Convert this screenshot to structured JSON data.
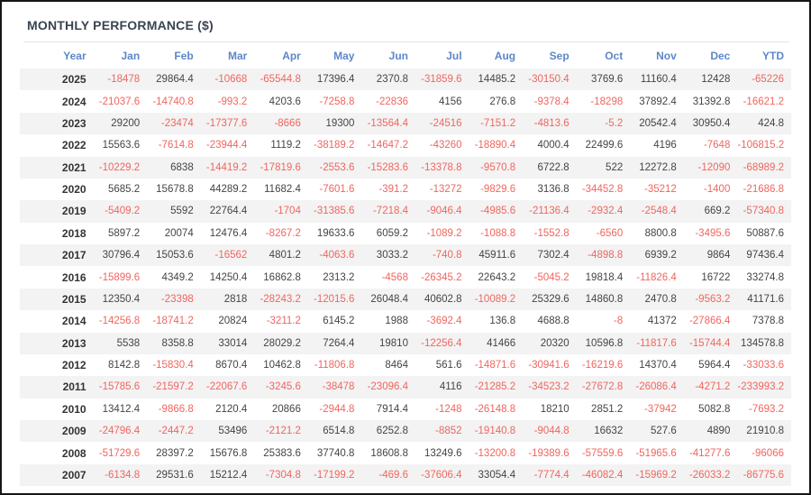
{
  "title": "MONTHLY PERFORMANCE ($)",
  "colors": {
    "title": "#3a4450",
    "divider": "#e4e4e4",
    "header_text": "#5d87c8",
    "negative": "#f1655e",
    "positive": "#444444",
    "year": "#333333",
    "stripe": "#f3f3f3",
    "frame_border": "#161616"
  },
  "table": {
    "columns": [
      "Year",
      "Jan",
      "Feb",
      "Mar",
      "Apr",
      "May",
      "Jun",
      "Jul",
      "Aug",
      "Sep",
      "Oct",
      "Nov",
      "Dec",
      "YTD"
    ],
    "rows": [
      {
        "year": "2025",
        "values": [
          "-18478",
          "29864.4",
          "-10668",
          "-65544.8",
          "17396.4",
          "2370.8",
          "-31859.6",
          "14485.2",
          "-30150.4",
          "3769.6",
          "11160.4",
          "12428",
          "-65226"
        ]
      },
      {
        "year": "2024",
        "values": [
          "-21037.6",
          "-14740.8",
          "-993.2",
          "4203.6",
          "-7258.8",
          "-22836",
          "4156",
          "276.8",
          "-9378.4",
          "-18298",
          "37892.4",
          "31392.8",
          "-16621.2"
        ]
      },
      {
        "year": "2023",
        "values": [
          "29200",
          "-23474",
          "-17377.6",
          "-8666",
          "19300",
          "-13564.4",
          "-24516",
          "-7151.2",
          "-4813.6",
          "-5.2",
          "20542.4",
          "30950.4",
          "424.8"
        ]
      },
      {
        "year": "2022",
        "values": [
          "15563.6",
          "-7614.8",
          "-23944.4",
          "1119.2",
          "-38189.2",
          "-14647.2",
          "-43260",
          "-18890.4",
          "4000.4",
          "22499.6",
          "4196",
          "-7648",
          "-106815.2"
        ]
      },
      {
        "year": "2021",
        "values": [
          "-10229.2",
          "6838",
          "-14419.2",
          "-17819.6",
          "-2553.6",
          "-15283.6",
          "-13378.8",
          "-9570.8",
          "6722.8",
          "522",
          "12272.8",
          "-12090",
          "-68989.2"
        ]
      },
      {
        "year": "2020",
        "values": [
          "5685.2",
          "15678.8",
          "44289.2",
          "11682.4",
          "-7601.6",
          "-391.2",
          "-13272",
          "-9829.6",
          "3136.8",
          "-34452.8",
          "-35212",
          "-1400",
          "-21686.8"
        ]
      },
      {
        "year": "2019",
        "values": [
          "-5409.2",
          "5592",
          "22764.4",
          "-1704",
          "-31385.6",
          "-7218.4",
          "-9046.4",
          "-4985.6",
          "-21136.4",
          "-2932.4",
          "-2548.4",
          "669.2",
          "-57340.8"
        ]
      },
      {
        "year": "2018",
        "values": [
          "5897.2",
          "20074",
          "12476.4",
          "-8267.2",
          "19633.6",
          "6059.2",
          "-1089.2",
          "-1088.8",
          "-1552.8",
          "-6560",
          "8800.8",
          "-3495.6",
          "50887.6"
        ]
      },
      {
        "year": "2017",
        "values": [
          "30796.4",
          "15053.6",
          "-16562",
          "4801.2",
          "-4063.6",
          "3033.2",
          "-740.8",
          "45911.6",
          "7302.4",
          "-4898.8",
          "6939.2",
          "9864",
          "97436.4"
        ]
      },
      {
        "year": "2016",
        "values": [
          "-15899.6",
          "4349.2",
          "14250.4",
          "16862.8",
          "2313.2",
          "-4568",
          "-26345.2",
          "22643.2",
          "-5045.2",
          "19818.4",
          "-11826.4",
          "16722",
          "33274.8"
        ]
      },
      {
        "year": "2015",
        "values": [
          "12350.4",
          "-23398",
          "2818",
          "-28243.2",
          "-12015.6",
          "26048.4",
          "40602.8",
          "-10089.2",
          "25329.6",
          "14860.8",
          "2470.8",
          "-9563.2",
          "41171.6"
        ]
      },
      {
        "year": "2014",
        "values": [
          "-14256.8",
          "-18741.2",
          "20824",
          "-3211.2",
          "6145.2",
          "1988",
          "-3692.4",
          "136.8",
          "4688.8",
          "-8",
          "41372",
          "-27866.4",
          "7378.8"
        ]
      },
      {
        "year": "2013",
        "values": [
          "5538",
          "8358.8",
          "33014",
          "28029.2",
          "7264.4",
          "19810",
          "-12256.4",
          "41466",
          "20320",
          "10596.8",
          "-11817.6",
          "-15744.4",
          "134578.8"
        ]
      },
      {
        "year": "2012",
        "values": [
          "8142.8",
          "-15830.4",
          "8670.4",
          "10462.8",
          "-11806.8",
          "8464",
          "561.6",
          "-14871.6",
          "-30941.6",
          "-16219.6",
          "14370.4",
          "5964.4",
          "-33033.6"
        ]
      },
      {
        "year": "2011",
        "values": [
          "-15785.6",
          "-21597.2",
          "-22067.6",
          "-3245.6",
          "-38478",
          "-23096.4",
          "4116",
          "-21285.2",
          "-34523.2",
          "-27672.8",
          "-26086.4",
          "-4271.2",
          "-233993.2"
        ]
      },
      {
        "year": "2010",
        "values": [
          "13412.4",
          "-9866.8",
          "2120.4",
          "20866",
          "-2944.8",
          "7914.4",
          "-1248",
          "-26148.8",
          "18210",
          "2851.2",
          "-37942",
          "5082.8",
          "-7693.2"
        ]
      },
      {
        "year": "2009",
        "values": [
          "-24796.4",
          "-2447.2",
          "53496",
          "-2121.2",
          "6514.8",
          "6252.8",
          "-8852",
          "-19140.8",
          "-9044.8",
          "16632",
          "527.6",
          "4890",
          "21910.8"
        ]
      },
      {
        "year": "2008",
        "values": [
          "-51729.6",
          "28397.2",
          "15676.8",
          "25383.6",
          "37740.8",
          "18608.8",
          "13249.6",
          "-13200.8",
          "-19389.6",
          "-57559.6",
          "-51965.6",
          "-41277.6",
          "-96066"
        ]
      },
      {
        "year": "2007",
        "values": [
          "-6134.8",
          "29531.6",
          "15212.4",
          "-7304.8",
          "-17199.2",
          "-469.6",
          "-37606.4",
          "33054.4",
          "-7774.4",
          "-46082.4",
          "-15969.2",
          "-26033.2",
          "-86775.6"
        ]
      }
    ]
  }
}
